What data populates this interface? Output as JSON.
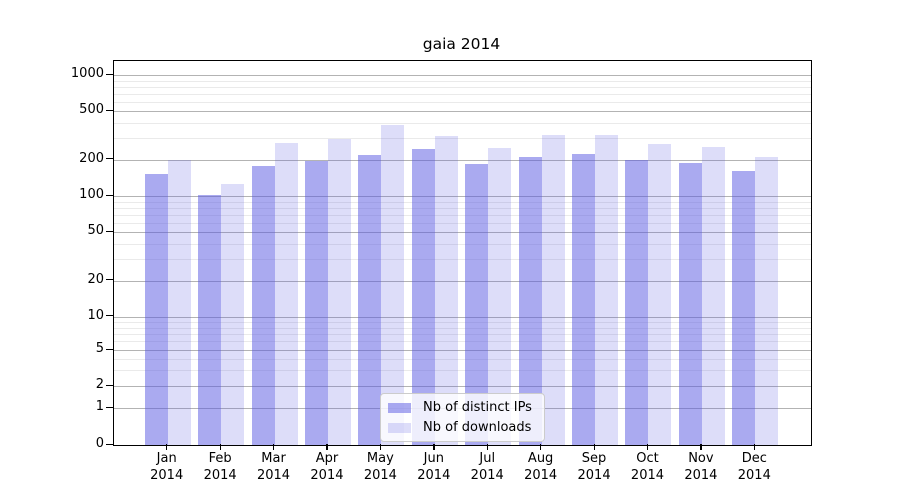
{
  "title": "gaia 2014",
  "legend": {
    "items": [
      {
        "label": "Nb of distinct IPs",
        "color": "rgba(85,85,225,0.5)"
      },
      {
        "label": "Nb of downloads",
        "color": "rgba(85,85,225,0.2)"
      }
    ]
  },
  "x_axis": {
    "months": [
      "Jan",
      "Feb",
      "Mar",
      "Apr",
      "May",
      "Jun",
      "Jul",
      "Aug",
      "Sep",
      "Oct",
      "Nov",
      "Dec"
    ],
    "year": "2014"
  },
  "y_axis": {
    "ticks": [
      0,
      1,
      2,
      5,
      10,
      20,
      50,
      100,
      200,
      500,
      1000
    ]
  },
  "colors": {
    "series_primary": "rgba(85,85,225,0.5)",
    "series_secondary": "rgba(85,85,225,0.2)",
    "grid_major": "#b3b3b3",
    "grid_minor": "#eaeaea",
    "axis": "#000000",
    "background": "#ffffff"
  },
  "chart_data": {
    "type": "bar",
    "title": "gaia 2014",
    "categories": [
      "Jan 2014",
      "Feb 2014",
      "Mar 2014",
      "Apr 2014",
      "May 2014",
      "Jun 2014",
      "Jul 2014",
      "Aug 2014",
      "Sep 2014",
      "Oct 2014",
      "Nov 2014",
      "Dec 2014"
    ],
    "series": [
      {
        "name": "Nb of distinct IPs",
        "values": [
          151,
          102,
          177,
          195,
          217,
          243,
          185,
          210,
          221,
          197,
          188,
          161
        ]
      },
      {
        "name": "Nb of downloads",
        "values": [
          200,
          125,
          273,
          294,
          386,
          315,
          248,
          321,
          317,
          267,
          255,
          212
        ]
      }
    ],
    "xlabel": "",
    "ylabel": "",
    "yscale": "symlog",
    "yticks": [
      0,
      1,
      2,
      5,
      10,
      20,
      50,
      100,
      200,
      500,
      1000
    ],
    "ylim": [
      0,
      1300
    ],
    "grid": true,
    "legend_position": "lower center"
  }
}
